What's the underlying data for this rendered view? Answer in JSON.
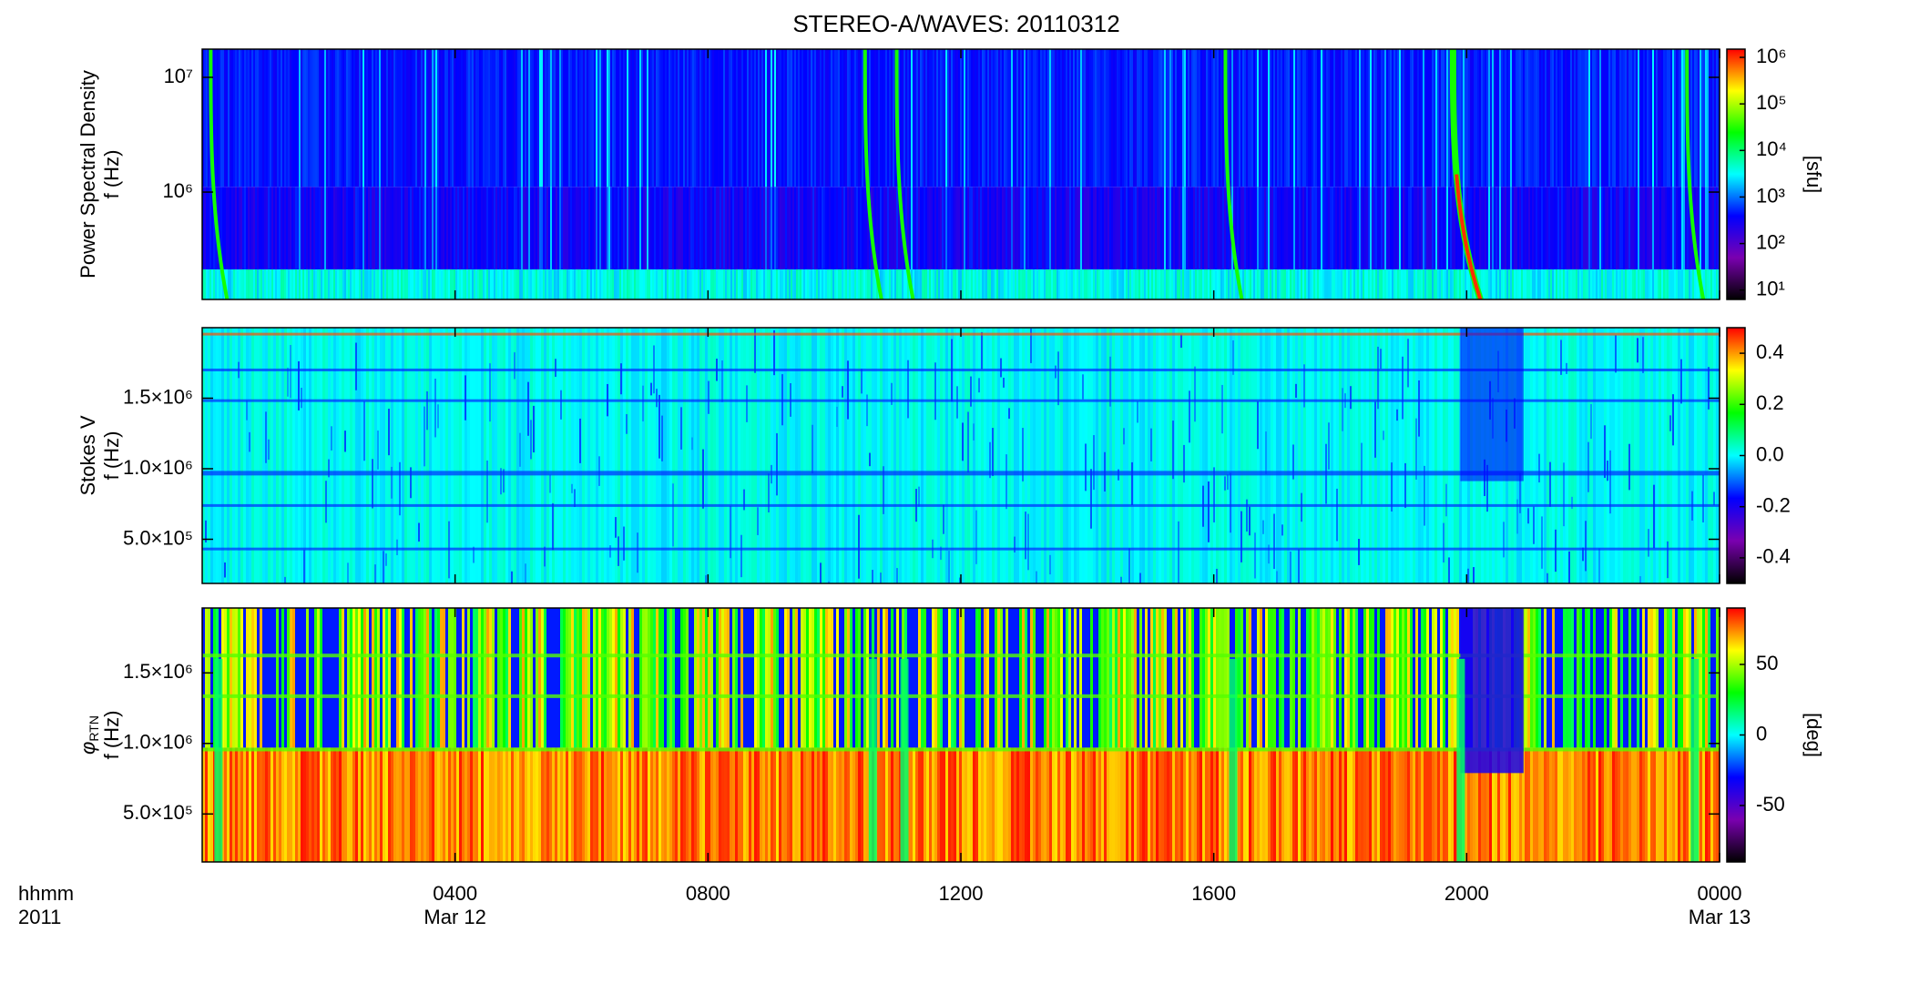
{
  "chart_data": [
    {
      "type": "spectrogram",
      "title": "STEREO-A/WAVES: 20110312",
      "ylabel": "Power Spectral Density",
      "ylabel2": "f (Hz)",
      "ylog": true,
      "ylim": [
        116000,
        17600000
      ],
      "yticks": [
        {
          "value": 1000000,
          "label": "10⁶"
        },
        {
          "value": 10000000,
          "label": "10⁷"
        }
      ],
      "clog": true,
      "clim": [
        6.3,
        1500000
      ],
      "cticks": [
        {
          "value": 10,
          "label": "10¹"
        },
        {
          "value": 100,
          "label": "10²"
        },
        {
          "value": 1000,
          "label": "10³"
        },
        {
          "value": 10000,
          "label": "10⁴"
        },
        {
          "value": 100000,
          "label": "10⁵"
        },
        {
          "value": 1000000,
          "label": "10⁶"
        }
      ],
      "clabel": "[sfu]",
      "colormap": [
        "#000000",
        "#7a00b0",
        "#0000ff",
        "#00ffff",
        "#00ff00",
        "#ffff00",
        "#ff0000"
      ],
      "xlim": [
        0,
        24
      ]
    },
    {
      "type": "spectrogram",
      "ylabel": "Stokes V",
      "ylabel2": "f (Hz)",
      "ylog": false,
      "ylim": [
        187000,
        2000000
      ],
      "yticks": [
        {
          "value": 500000,
          "label": "5.0×10⁵"
        },
        {
          "value": 1000000,
          "label": "1.0×10⁶"
        },
        {
          "value": 1500000,
          "label": "1.5×10⁶"
        }
      ],
      "clog": false,
      "clim": [
        -0.5,
        0.5
      ],
      "cticks": [
        {
          "value": -0.4,
          "label": "-0.4"
        },
        -0.2,
        {
          "value": 0,
          "label": "0.0"
        },
        0.2,
        0.4
      ],
      "colormap": [
        "#000000",
        "#7a00b0",
        "#0000ff",
        "#00ffff",
        "#00ff00",
        "#ffff00",
        "#ff0000"
      ],
      "xlim": [
        0,
        24
      ]
    },
    {
      "type": "spectrogram",
      "ylabel": "φ",
      "ylabel_sub": "RTN",
      "ylabel2": "f (Hz)",
      "ylog": false,
      "ylim": [
        160000,
        1960000
      ],
      "yticks": [
        {
          "value": 500000,
          "label": "5.0×10⁵"
        },
        {
          "value": 1000000,
          "label": "1.0×10⁶"
        },
        {
          "value": 1500000,
          "label": "1.5×10⁶"
        }
      ],
      "clog": false,
      "clim": [
        -90,
        90
      ],
      "cticks": [
        -50,
        0,
        50
      ],
      "clabel": "[deg]",
      "colormap": [
        "#000000",
        "#7a00b0",
        "#0000ff",
        "#00ffff",
        "#00ff00",
        "#ffff00",
        "#ff0000"
      ],
      "xlim": [
        0,
        24
      ],
      "xticks": [
        {
          "value": 4,
          "label": "0400"
        },
        {
          "value": 8,
          "label": "0800"
        },
        {
          "value": 12,
          "label": "1200"
        },
        {
          "value": 16,
          "label": "1600"
        },
        {
          "value": 20,
          "label": "2000"
        },
        {
          "value": 24,
          "label": "0000"
        }
      ],
      "xdates": [
        {
          "value": 4,
          "label": "Mar 12"
        },
        {
          "value": 24,
          "label": "Mar 13"
        }
      ],
      "xlabel": "hhmm",
      "xlabel2": "2011"
    }
  ]
}
